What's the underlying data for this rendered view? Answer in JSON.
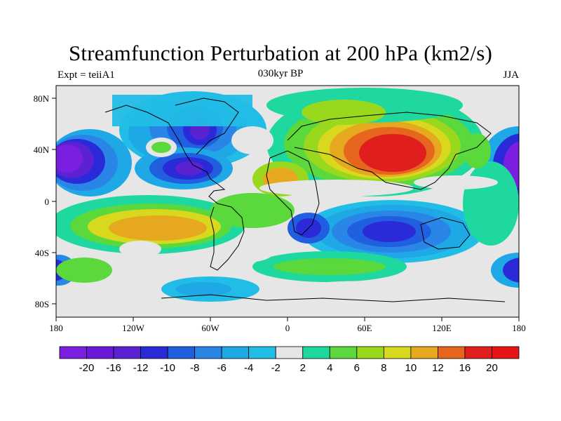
{
  "title": "Streamfunction Perturbation at 200 hPa (km2/s)",
  "subtitle_left": "Expt = teiiA1",
  "subtitle_center": "030kyr BP",
  "subtitle_right": "JJA",
  "lat_labels": [
    "80N",
    "40N",
    "0",
    "40S",
    "80S"
  ],
  "lon_labels": [
    "180",
    "120W",
    "60W",
    "0",
    "60E",
    "120E",
    "180"
  ],
  "colorbar": {
    "labels": [
      "-20",
      "-16",
      "-12",
      "-10",
      "-8",
      "-6",
      "-4",
      "-2",
      "2",
      "4",
      "6",
      "8",
      "10",
      "12",
      "16",
      "20"
    ],
    "colors": [
      "#7a1ee0",
      "#6a1ad6",
      "#5a22d0",
      "#2a2ad8",
      "#1f5fe0",
      "#2a86e6",
      "#1ea8e6",
      "#22bde6",
      "#e6e6e6",
      "#1ed8a0",
      "#5ad83c",
      "#9ad81e",
      "#d8d81e",
      "#e6a81e",
      "#e6661e",
      "#e01e1e",
      "#e61414"
    ]
  },
  "map": {
    "projection": "cylindrical-equidistant",
    "lon_range": [
      -180,
      180
    ],
    "lat_range": [
      -90,
      90
    ],
    "field": "streamfunction perturbation",
    "contour_levels": [
      -20,
      -16,
      -12,
      -10,
      -8,
      -6,
      -4,
      -2,
      2,
      4,
      6,
      8,
      10,
      12,
      16,
      20
    ],
    "colors": {
      "neutral": "#e6e6e6",
      "coast": "#000000"
    }
  }
}
